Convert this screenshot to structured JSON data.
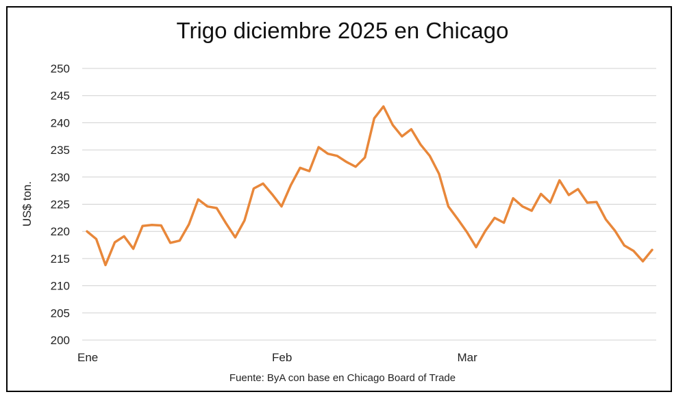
{
  "chart_data": {
    "type": "line",
    "title": "Trigo diciembre 2025 en Chicago",
    "ylabel": "US$ ton.",
    "xlabel": "",
    "source": "Fuente: ByA con base en Chicago Board of Trade",
    "ylim": [
      200,
      250
    ],
    "yticks": [
      200,
      205,
      210,
      215,
      220,
      225,
      230,
      235,
      240,
      245,
      250
    ],
    "xticks": [
      {
        "label": "Ene",
        "index": 0
      },
      {
        "label": "Feb",
        "index": 21
      },
      {
        "label": "Mar",
        "index": 41
      }
    ],
    "grid": true,
    "legend": "none",
    "series": [
      {
        "color": "#E8873A",
        "values": [
          220.0,
          218.6,
          213.8,
          218.0,
          219.1,
          216.8,
          221.0,
          221.2,
          221.1,
          217.9,
          218.3,
          221.3,
          225.9,
          224.6,
          224.3,
          221.5,
          218.9,
          222.0,
          227.9,
          228.8,
          226.8,
          224.6,
          228.5,
          231.7,
          231.1,
          235.5,
          234.3,
          233.9,
          232.8,
          231.9,
          233.6,
          240.8,
          243.0,
          239.6,
          237.5,
          238.8,
          236.0,
          233.9,
          230.6,
          224.6,
          222.3,
          219.9,
          217.1,
          220.1,
          222.5,
          221.6,
          226.1,
          224.6,
          223.8,
          226.9,
          225.3,
          229.4,
          226.7,
          227.8,
          225.3,
          225.4,
          222.2,
          220.1,
          217.4,
          216.4,
          214.5,
          216.6
        ]
      }
    ]
  }
}
